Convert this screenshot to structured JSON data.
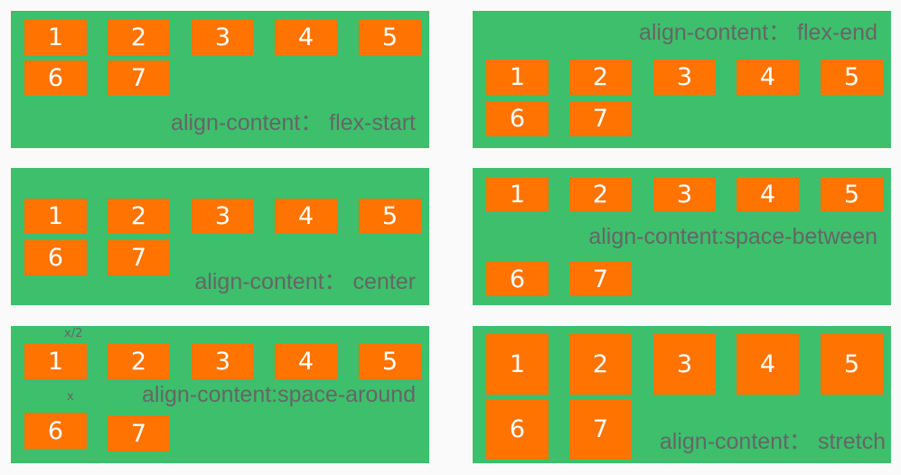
{
  "colors": {
    "panel": "#3dbf6c",
    "item": "#ff7300",
    "label": "#666666",
    "item_text": "#ffffff"
  },
  "panels": [
    {
      "id": "flex-start",
      "label": "align-content： flex-start",
      "items": [
        "1",
        "2",
        "3",
        "4",
        "5",
        "6",
        "7"
      ]
    },
    {
      "id": "flex-end",
      "label": "align-content： flex-end",
      "items": [
        "1",
        "2",
        "3",
        "4",
        "5",
        "6",
        "7"
      ]
    },
    {
      "id": "center",
      "label": "align-content： center",
      "items": [
        "1",
        "2",
        "3",
        "4",
        "5",
        "6",
        "7"
      ]
    },
    {
      "id": "space-between",
      "label": "align-content:space-between",
      "items": [
        "1",
        "2",
        "3",
        "4",
        "5",
        "6",
        "7"
      ]
    },
    {
      "id": "space-around",
      "label": "align-content:space-around",
      "items": [
        "1",
        "2",
        "3",
        "4",
        "5",
        "6",
        "7"
      ],
      "notes": [
        "x/2",
        "x"
      ]
    },
    {
      "id": "stretch",
      "label": "align-content： stretch",
      "items": [
        "1",
        "2",
        "3",
        "4",
        "5",
        "6",
        "7"
      ]
    }
  ]
}
